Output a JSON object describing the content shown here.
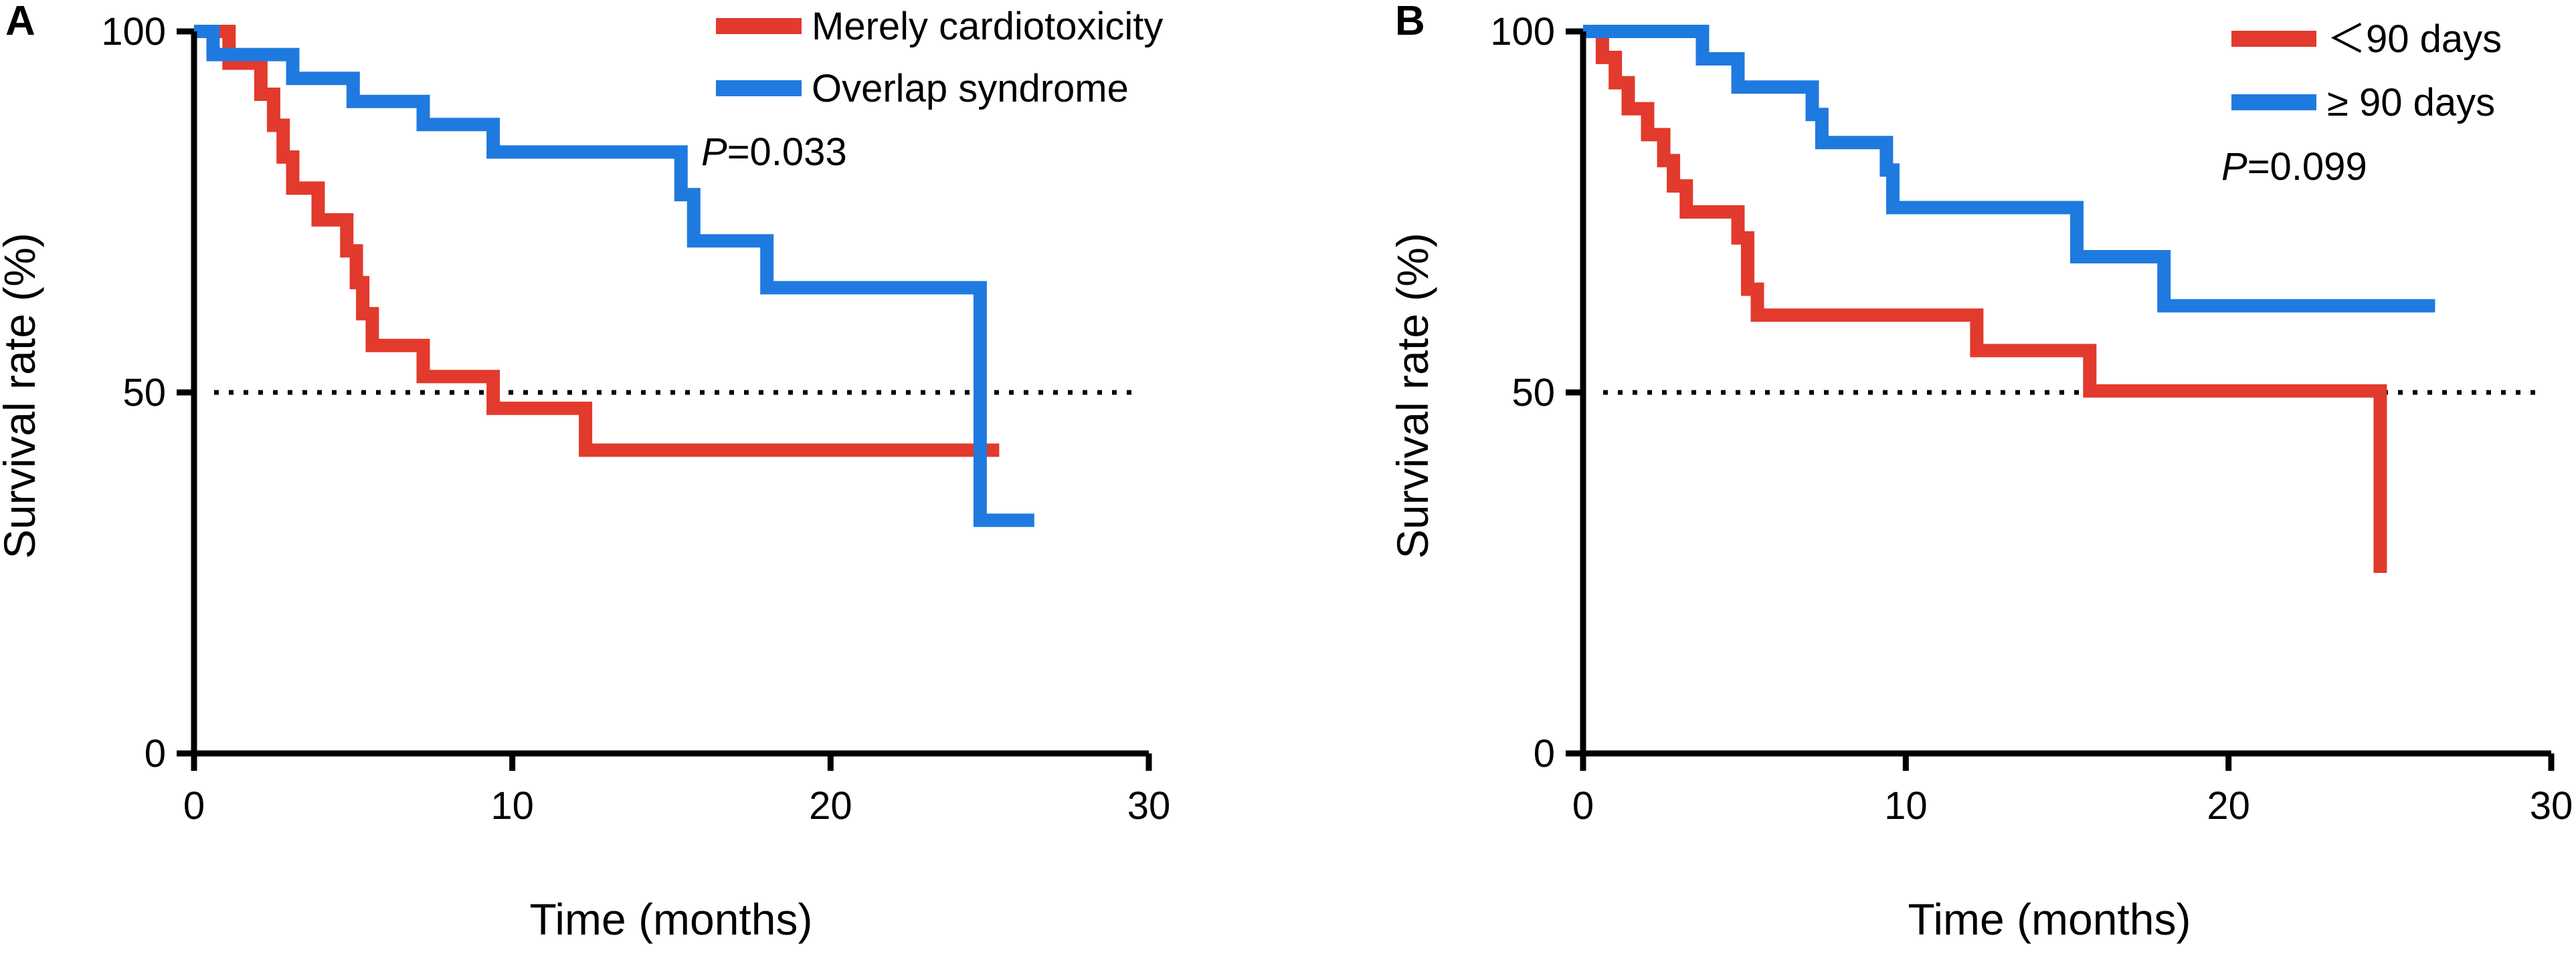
{
  "colors": {
    "red": "#e23a2c",
    "blue": "#1f7ae0",
    "axis": "#000000"
  },
  "chart_data": [
    {
      "type": "line",
      "subtype": "kaplan-meier",
      "panel_label": "A",
      "xlabel": "Time (months)",
      "ylabel": "Survival rate (%)",
      "xlim": [
        0,
        30
      ],
      "ylim": [
        0,
        100
      ],
      "xticks": [
        "0",
        "10",
        "20",
        "30"
      ],
      "yticks": [
        "0",
        "50",
        "100"
      ],
      "reference_line_y": 50,
      "legend_position": "top-right",
      "annotation": {
        "prefix": "P",
        "text": "=0.033"
      },
      "series": [
        {
          "name": "Merely cardiotoxicity",
          "color": "#e23a2c",
          "x": [
            0,
            1.1,
            1.1,
            2.1,
            2.1,
            2.5,
            2.5,
            2.8,
            2.8,
            3.1,
            3.1,
            3.9,
            3.9,
            4.8,
            4.8,
            5.1,
            5.1,
            5.3,
            5.3,
            5.6,
            5.6,
            7.2,
            7.2,
            9.4,
            9.4,
            12.3,
            12.3,
            25.3
          ],
          "y": [
            100,
            100,
            95.6,
            95.6,
            91.3,
            91.3,
            87,
            87,
            82.6,
            82.6,
            78.3,
            78.3,
            73.9,
            73.9,
            69.6,
            69.6,
            65.2,
            65.2,
            60.9,
            60.9,
            56.5,
            56.5,
            52.2,
            52.2,
            47.8,
            47.8,
            42,
            42
          ]
        },
        {
          "name": "Overlap syndrome",
          "color": "#1f7ae0",
          "x": [
            0,
            0.6,
            0.6,
            3.1,
            3.1,
            5.0,
            5.0,
            7.2,
            7.2,
            9.4,
            9.4,
            15.3,
            15.3,
            15.7,
            15.7,
            18.0,
            18.0,
            24.7,
            24.7,
            26.4
          ],
          "y": [
            100,
            100,
            96.8,
            96.8,
            93.5,
            93.5,
            90.3,
            90.3,
            87.1,
            87.1,
            83.3,
            83.3,
            77.4,
            77.4,
            71,
            71,
            64.5,
            64.5,
            32.3,
            32.3
          ]
        }
      ]
    },
    {
      "type": "line",
      "subtype": "kaplan-meier",
      "panel_label": "B",
      "xlabel": "Time (months)",
      "ylabel": "Survival rate (%)",
      "xlim": [
        0,
        30
      ],
      "ylim": [
        0,
        100
      ],
      "xticks": [
        "0",
        "10",
        "20",
        "30"
      ],
      "yticks": [
        "0",
        "50",
        "100"
      ],
      "reference_line_y": 50,
      "legend_position": "top-right",
      "annotation": {
        "prefix": "P",
        "text": "=0.099"
      },
      "series": [
        {
          "name": "＜90 days",
          "color": "#e23a2c",
          "x": [
            0,
            0.6,
            0.6,
            1.0,
            1.0,
            1.4,
            1.4,
            2.0,
            2.0,
            2.5,
            2.5,
            2.8,
            2.8,
            3.2,
            3.2,
            4.8,
            4.8,
            5.1,
            5.1,
            5.4,
            5.4,
            12.2,
            12.2,
            15.7,
            15.7,
            24.7,
            24.7
          ],
          "y": [
            100,
            100,
            96.4,
            96.4,
            92.9,
            92.9,
            89.3,
            89.3,
            85.7,
            85.7,
            82.1,
            82.1,
            78.6,
            78.6,
            75,
            75,
            71.4,
            71.4,
            64.3,
            64.3,
            60.7,
            60.7,
            55.8,
            55.8,
            50.2,
            50.2,
            25
          ]
        },
        {
          "name": "≥ 90 days",
          "color": "#1f7ae0",
          "x": [
            0,
            0.8,
            0.8,
            3.7,
            3.7,
            4.8,
            4.8,
            7.1,
            7.1,
            7.4,
            7.4,
            9.4,
            9.4,
            9.6,
            9.6,
            15.3,
            15.3,
            18.0,
            18.0,
            26.4
          ],
          "y": [
            100,
            100,
            100,
            100,
            96.2,
            96.2,
            92.3,
            92.3,
            88.5,
            88.5,
            84.6,
            84.6,
            80.8,
            80.8,
            75.6,
            75.6,
            68.8,
            68.8,
            62,
            62
          ]
        }
      ]
    }
  ]
}
